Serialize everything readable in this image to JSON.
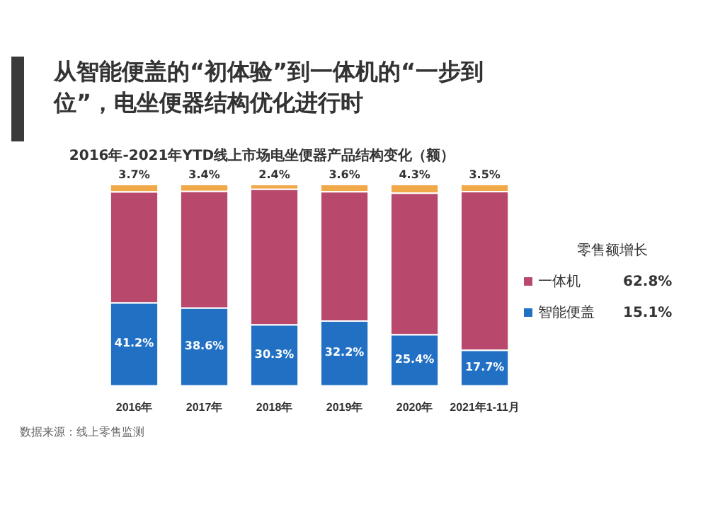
{
  "chart_data": {
    "type": "bar",
    "title": "从智能便盖的“初体验”到一体机的“一步到位”，电坐便器结构优化进行时",
    "subtitle": "2016年-2021年YTD线上市场电坐便器产品结构变化（额）",
    "categories": [
      "2016年",
      "2017年",
      "2018年",
      "2019年",
      "2020年",
      "2021年1-11月"
    ],
    "stacked": true,
    "tick_labels": "x",
    "legend": "right",
    "legend_title": "零售额增长",
    "series": [
      {
        "name": "智能便盖",
        "color": "#2170c4",
        "values": [
          41.2,
          38.6,
          30.3,
          32.2,
          25.4,
          17.7
        ],
        "value_labels": [
          "41.2%",
          "38.6%",
          "30.3%",
          "32.2%",
          "25.4%",
          "17.7%"
        ]
      },
      {
        "name": "一体机",
        "color": "#b8496c",
        "values": [
          55.1,
          58.0,
          67.3,
          64.2,
          70.3,
          78.8
        ],
        "value_labels": [
          null,
          null,
          null,
          null,
          null,
          null
        ]
      },
      {
        "color": "#f0a848",
        "values": [
          3.7,
          3.4,
          2.4,
          3.6,
          4.3,
          3.5
        ],
        "value_labels": [
          "3.7%",
          "3.4%",
          "2.4%",
          "3.6%",
          "4.3%",
          "3.5%"
        ]
      }
    ],
    "annotations": [
      "15.1%",
      "62.8%",
      "数据来源：线上零售监测"
    ]
  }
}
